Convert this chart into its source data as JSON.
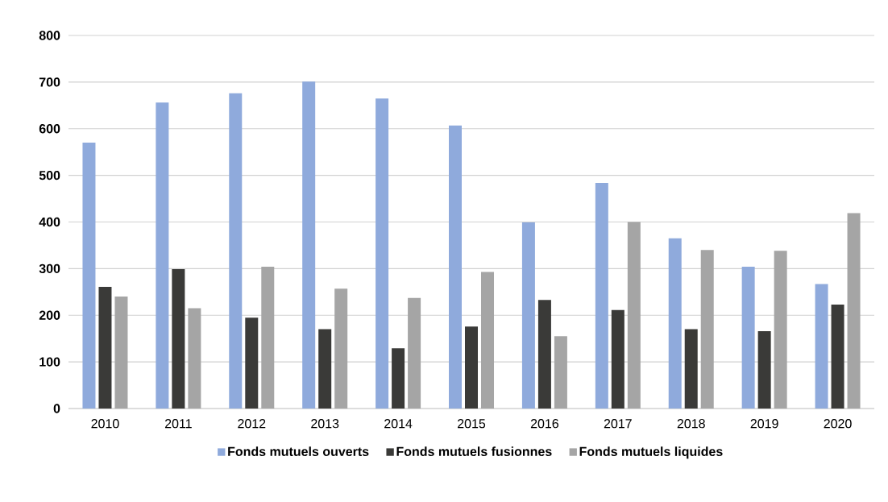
{
  "chart_data": {
    "type": "bar",
    "categories": [
      "2010",
      "2011",
      "2012",
      "2013",
      "2014",
      "2015",
      "2016",
      "2017",
      "2018",
      "2019",
      "2020"
    ],
    "series": [
      {
        "name": "Fonds mutuels ouverts",
        "color": "#8faadc",
        "values": [
          570,
          656,
          676,
          701,
          665,
          607,
          399,
          484,
          365,
          304,
          267
        ]
      },
      {
        "name": "Fonds mutuels fusionnes",
        "color": "#3a3a38",
        "values": [
          261,
          299,
          195,
          170,
          129,
          176,
          233,
          211,
          170,
          166,
          223
        ]
      },
      {
        "name": "Fonds mutuels liquides",
        "color": "#a5a5a5",
        "values": [
          240,
          215,
          304,
          257,
          237,
          293,
          155,
          400,
          340,
          338,
          419
        ]
      }
    ],
    "ylim": [
      0,
      800
    ],
    "yticks": [
      0,
      100,
      200,
      300,
      400,
      500,
      600,
      700,
      800
    ],
    "grid": "y",
    "legend": "bottom"
  }
}
